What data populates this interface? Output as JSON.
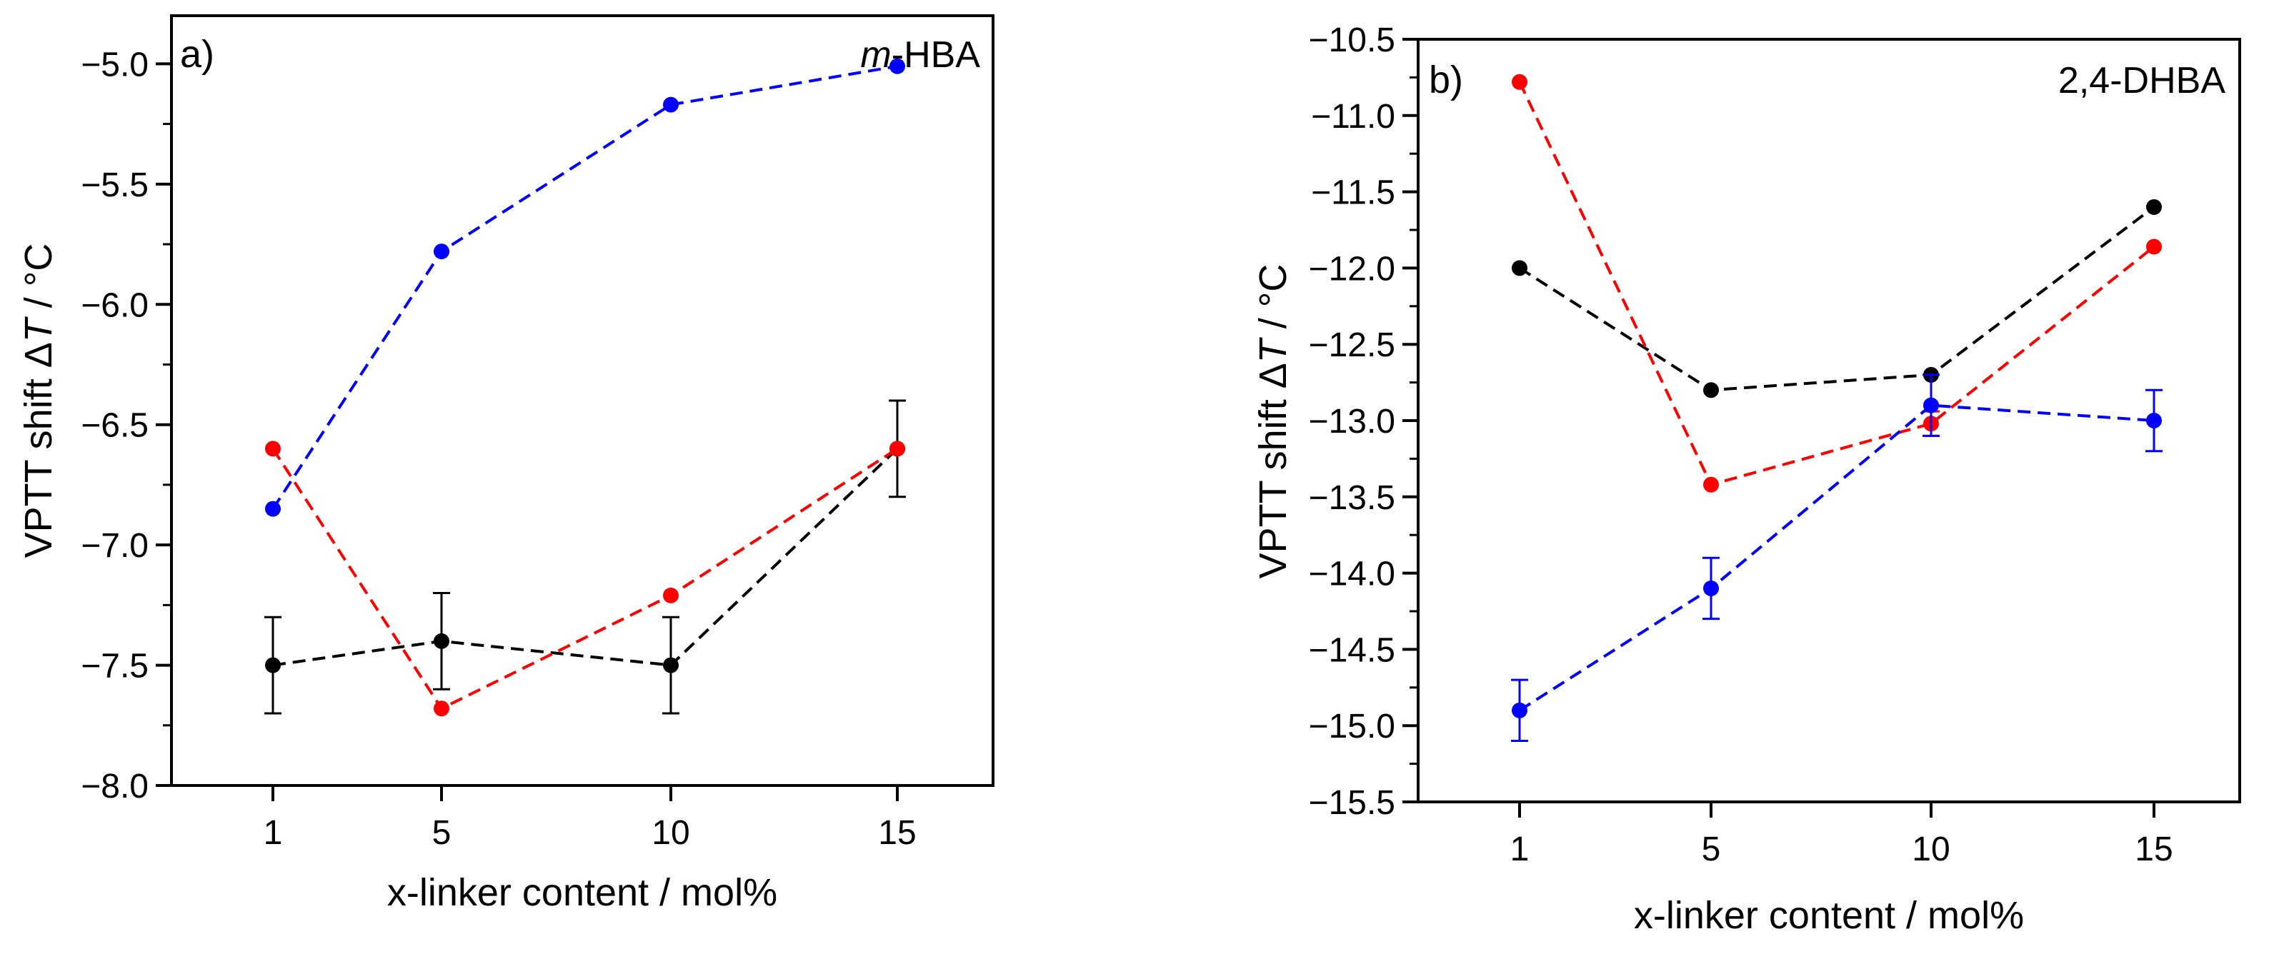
{
  "figure": {
    "background": "#ffffff"
  },
  "colors": {
    "black": "#000000",
    "red": "#ff0000",
    "blue": "#0000ff"
  },
  "chart_data": [
    {
      "type": "line",
      "panel_label": "a)",
      "title_italic": "m",
      "title_rest": "-HBA",
      "xlabel": "x-linker content / mol%",
      "ylabel_prefix": "VPTT shift Δ",
      "ylabel_var": "T",
      "ylabel_suffix": " / °C",
      "categories": [
        "1",
        "5",
        "10",
        "15"
      ],
      "ylim": [
        -8.0,
        -4.8
      ],
      "yticks": [
        -8.0,
        -7.5,
        -7.0,
        -6.5,
        -6.0,
        -5.5,
        -5.0
      ],
      "ytick_labels": [
        "−8.0",
        "−7.5",
        "−7.0",
        "−6.5",
        "−6.0",
        "−5.5",
        "−5.0"
      ],
      "grid": false,
      "line_style": "dashed",
      "series": [
        {
          "color": "black",
          "values": [
            -7.5,
            -7.4,
            -7.5,
            -6.6
          ],
          "errors": [
            0.2,
            0.2,
            0.2,
            0.2
          ]
        },
        {
          "color": "red",
          "values": [
            -6.6,
            -7.68,
            -7.21,
            -6.6
          ],
          "errors": [
            0,
            0,
            0,
            0
          ]
        },
        {
          "color": "blue",
          "values": [
            -6.85,
            -5.78,
            -5.17,
            -5.01
          ],
          "errors": [
            0,
            0,
            0,
            0
          ]
        }
      ]
    },
    {
      "type": "line",
      "panel_label": "b)",
      "title_italic": "",
      "title_rest": "2,4-DHBA",
      "xlabel": "x-linker content / mol%",
      "ylabel_prefix": "VPTT shift Δ",
      "ylabel_var": "T",
      "ylabel_suffix": " / °C",
      "categories": [
        "1",
        "5",
        "10",
        "15"
      ],
      "ylim": [
        -15.5,
        -10.5
      ],
      "yticks": [
        -15.5,
        -15.0,
        -14.5,
        -14.0,
        -13.5,
        -13.0,
        -12.5,
        -12.0,
        -11.5,
        -11.0,
        -10.5
      ],
      "ytick_labels": [
        "−15.5",
        "−15.0",
        "−14.5",
        "−14.0",
        "−13.5",
        "−13.0",
        "−12.5",
        "−12.0",
        "−11.5",
        "−11.0",
        "−10.5"
      ],
      "grid": false,
      "line_style": "dashed",
      "series": [
        {
          "color": "black",
          "values": [
            -12.0,
            -12.8,
            -12.7,
            -11.6
          ],
          "errors": [
            0,
            0,
            0,
            0
          ]
        },
        {
          "color": "red",
          "values": [
            -10.78,
            -13.42,
            -13.02,
            -11.86
          ],
          "errors": [
            0,
            0,
            0.08,
            0
          ]
        },
        {
          "color": "blue",
          "values": [
            -14.9,
            -14.1,
            -12.9,
            -13.0
          ],
          "errors": [
            0.2,
            0.2,
            0.2,
            0.2
          ]
        }
      ]
    }
  ]
}
